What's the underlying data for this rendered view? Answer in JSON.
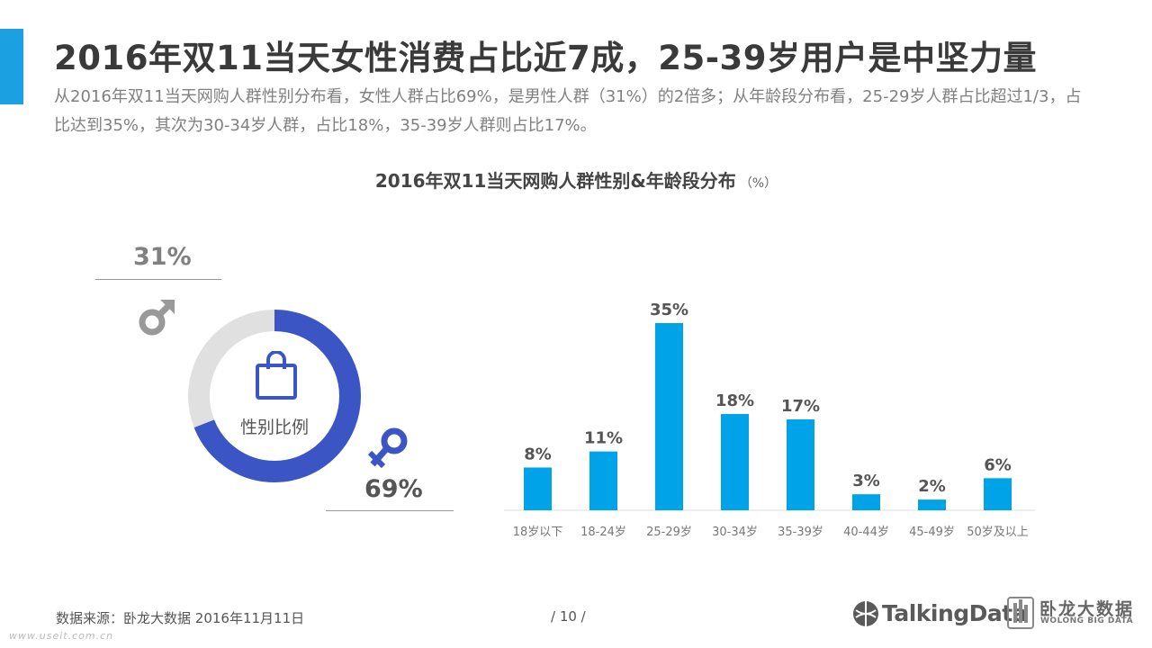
{
  "header": {
    "title": "2016年双11当天女性消费占比近7成，25-39岁用户是中坚力量",
    "description": "从2016年双11当天网购人群性别分布看，女性人群占比69%，是男性人群（31%）的2倍多；从年龄段分布看，25-29岁人群占比超过1/3，占比达到35%，其次为30-34岁人群，占比18%，35-39岁人群则占比17%。"
  },
  "chart_title": "2016年双11当天网购人群性别&年龄段分布",
  "chart_unit": "（%）",
  "gender": {
    "male_pct": "31%",
    "female_pct": "69%",
    "center_label": "性别比例",
    "male_color": "#e0e0e0",
    "female_color": "#3b55c4"
  },
  "chart_data": [
    {
      "type": "pie",
      "categories": [
        "male",
        "female"
      ],
      "values": [
        31,
        69
      ],
      "colors": [
        "#e0e0e0",
        "#3b55c4"
      ],
      "title": "",
      "center_label": "性别比例"
    },
    {
      "type": "bar",
      "categories": [
        "18岁以下",
        "18-24岁",
        "25-29岁",
        "30-34岁",
        "35-39岁",
        "40-44岁",
        "45-49岁",
        "50岁及以上"
      ],
      "values": [
        8,
        11,
        35,
        18,
        17,
        3,
        2,
        6
      ],
      "value_labels": [
        "8%",
        "11%",
        "35%",
        "18%",
        "17%",
        "3%",
        "2%",
        "6%"
      ],
      "bar_color": "#00a3e8",
      "ylim": [
        0,
        35
      ],
      "xlabel": "",
      "ylabel": "",
      "grid": false
    }
  ],
  "footer": {
    "source": "数据来源：卧龙大数据  2016年11月11日",
    "page": "/  10  /",
    "watermark": "www.useit.com.cn",
    "logo_talkingdata": "TalkingData",
    "logo_wolong_cn": "卧龙大数据",
    "logo_wolong_en": "WOLONG BIG DATA"
  }
}
